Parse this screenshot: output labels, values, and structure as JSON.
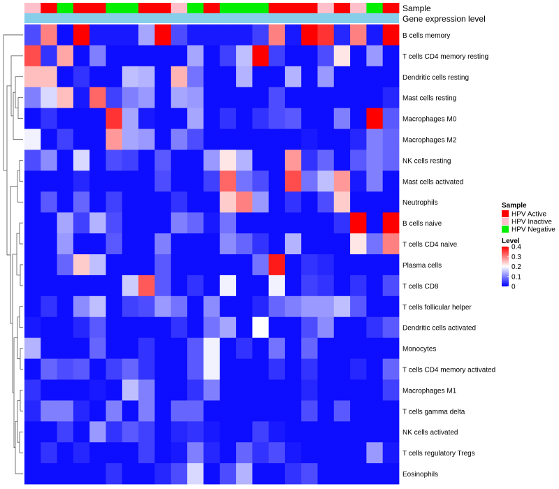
{
  "chart_data": {
    "type": "heatmap",
    "title": "",
    "annotation_tracks": [
      {
        "name": "Sample",
        "values": [
          "HPV Inactive",
          "HPV Active",
          "HPV Negative",
          "HPV Active",
          "HPV Active",
          "HPV Negative",
          "HPV Negative",
          "HPV Active",
          "HPV Active",
          "HPV Inactive",
          "HPV Negative",
          "HPV Active",
          "HPV Negative",
          "HPV Negative",
          "HPV Negative",
          "HPV Active",
          "HPV Active",
          "HPV Active",
          "HPV Inactive",
          "HPV Active",
          "HPV Inactive",
          "HPV Negative",
          "HPV Active"
        ]
      },
      {
        "name": "Gene expression level",
        "values": [
          "",
          "",
          "",
          "",
          "",
          "",
          "",
          "",
          "",
          "",
          "",
          "",
          "",
          "",
          "",
          "",
          "",
          "",
          "",
          "",
          "",
          "",
          ""
        ]
      }
    ],
    "legend_sample": {
      "title": "Sample",
      "entries": [
        {
          "label": "HPV Active",
          "color": "#ff0000"
        },
        {
          "label": "HPV Inactive",
          "color": "#ffc0cb"
        },
        {
          "label": "HPV Negative",
          "color": "#00ee00"
        }
      ]
    },
    "legend_level": {
      "title": "Level",
      "ticks": [
        "0",
        "0.1",
        "0.2",
        "0.3",
        "0.4"
      ],
      "tick_values": [
        0,
        0.1,
        0.2,
        0.3,
        0.4
      ],
      "range": [
        0,
        0.4
      ]
    },
    "colors": {
      "low": "#0000ff",
      "mid": "#ffffff",
      "high": "#ff0000",
      "expression_track": "#87ceeb"
    },
    "rows": [
      "B cells memory",
      "T cells CD4 memory resting",
      "Dendritic cells resting",
      "Mast cells resting",
      "Macrophages M0",
      "Macrophages M2",
      "NK cells resting",
      "Mast cells activated",
      "Neutrophils",
      "B cells naive",
      "T cells CD4 naive",
      "Plasma cells",
      "T cells CD8",
      "T cells follicular helper",
      "Dendritic cells activated",
      "Monocytes",
      "T cells CD4 memory activated",
      "Macrophages M1",
      "T cells gamma delta",
      "NK cells activated",
      "T cells regulatory  Tregs",
      "Eosinophils"
    ],
    "n_columns": 23,
    "values": [
      [
        0.06,
        0.3,
        0.01,
        0.4,
        0.02,
        0.02,
        0.02,
        0.13,
        0.4,
        0.06,
        0.02,
        0.02,
        0.02,
        0.02,
        0.05,
        0.3,
        0.02,
        0.4,
        0.36,
        0.03,
        0.3,
        0.02,
        0.4
      ],
      [
        0.34,
        0.04,
        0.27,
        0.01,
        0.1,
        0.01,
        0.01,
        0.01,
        0.01,
        0.01,
        0.13,
        0.01,
        0.05,
        0.15,
        0.4,
        0.05,
        0.01,
        0.01,
        0.06,
        0.22,
        0.01,
        0.12,
        0.01
      ],
      [
        0.25,
        0.25,
        0.01,
        0.04,
        0.01,
        0.01,
        0.15,
        0.14,
        0.01,
        0.26,
        0.09,
        0.01,
        0.01,
        0.14,
        0.01,
        0.01,
        0.14,
        0.01,
        0.12,
        0.01,
        0.01,
        0.01,
        0.01
      ],
      [
        0.1,
        0.17,
        0.25,
        0.02,
        0.32,
        0.05,
        0.1,
        0.12,
        0.01,
        0.13,
        0.12,
        0.01,
        0.01,
        0.01,
        0.01,
        0.06,
        0.01,
        0.01,
        0.01,
        0.01,
        0.01,
        0.01,
        0.03
      ],
      [
        0.01,
        0.04,
        0.01,
        0.01,
        0.01,
        0.36,
        0.13,
        0.02,
        0.01,
        0.01,
        0.13,
        0.01,
        0.04,
        0.01,
        0.04,
        0.06,
        0.07,
        0.01,
        0.01,
        0.1,
        0.01,
        0.4,
        0.07
      ],
      [
        0.19,
        0.01,
        0.05,
        0.01,
        0.01,
        0.28,
        0.13,
        0.12,
        0.01,
        0.1,
        0.06,
        0.01,
        0.01,
        0.01,
        0.01,
        0.01,
        0.01,
        0.02,
        0.01,
        0.01,
        0.03,
        0.1,
        0.08
      ],
      [
        0.06,
        0.11,
        0.01,
        0.17,
        0.01,
        0.06,
        0.05,
        0.01,
        0.07,
        0.01,
        0.01,
        0.12,
        0.22,
        0.14,
        0.01,
        0.01,
        0.28,
        0.04,
        0.08,
        0.01,
        0.07,
        0.1,
        0.08
      ],
      [
        0.01,
        0.01,
        0.01,
        0.03,
        0.01,
        0.01,
        0.01,
        0.01,
        0.06,
        0.01,
        0.01,
        0.05,
        0.32,
        0.09,
        0.06,
        0.01,
        0.34,
        0.09,
        0.15,
        0.28,
        0.02,
        0.1,
        0.01
      ],
      [
        0.01,
        0.07,
        0.01,
        0.08,
        0.01,
        0.05,
        0.01,
        0.01,
        0.01,
        0.04,
        0.01,
        0.01,
        0.24,
        0.3,
        0.12,
        0.01,
        0.04,
        0.01,
        0.06,
        0.24,
        0.01,
        0.01,
        0.01
      ],
      [
        0.01,
        0.01,
        0.13,
        0.05,
        0.14,
        0.06,
        0.01,
        0.01,
        0.01,
        0.1,
        0.08,
        0.02,
        0.09,
        0.01,
        0.01,
        0.01,
        0.01,
        0.01,
        0.01,
        0.04,
        0.4,
        0.01,
        0.4
      ],
      [
        0.01,
        0.01,
        0.12,
        0.01,
        0.01,
        0.07,
        0.01,
        0.01,
        0.1,
        0.01,
        0.01,
        0.01,
        0.11,
        0.08,
        0.04,
        0.01,
        0.14,
        0.01,
        0.01,
        0.01,
        0.22,
        0.09,
        0.3
      ],
      [
        0.01,
        0.01,
        0.08,
        0.24,
        0.15,
        0.01,
        0.01,
        0.01,
        0.07,
        0.01,
        0.01,
        0.01,
        0.01,
        0.01,
        0.09,
        0.38,
        0.01,
        0.04,
        0.03,
        0.01,
        0.01,
        0.01,
        0.01
      ],
      [
        0.01,
        0.01,
        0.01,
        0.01,
        0.01,
        0.01,
        0.16,
        0.33,
        0.07,
        0.01,
        0.04,
        0.01,
        0.19,
        0.01,
        0.01,
        0.19,
        0.01,
        0.05,
        0.04,
        0.01,
        0.04,
        0.01,
        0.06
      ],
      [
        0.01,
        0.04,
        0.01,
        0.11,
        0.15,
        0.01,
        0.05,
        0.06,
        0.12,
        0.09,
        0.01,
        0.11,
        0.01,
        0.01,
        0.03,
        0.08,
        0.1,
        0.12,
        0.12,
        0.15,
        0.07,
        0.01,
        0.01
      ],
      [
        0.02,
        0.01,
        0.01,
        0.03,
        0.07,
        0.01,
        0.01,
        0.01,
        0.01,
        0.04,
        0.01,
        0.09,
        0.13,
        0.01,
        0.2,
        0.01,
        0.01,
        0.06,
        0.11,
        0.01,
        0.01,
        0.04,
        0.07
      ],
      [
        0.14,
        0.01,
        0.01,
        0.01,
        0.08,
        0.01,
        0.01,
        0.04,
        0.01,
        0.01,
        0.07,
        0.19,
        0.01,
        0.04,
        0.01,
        0.09,
        0.01,
        0.08,
        0.01,
        0.01,
        0.01,
        0.01,
        0.01
      ],
      [
        0.01,
        0.08,
        0.06,
        0.07,
        0.01,
        0.05,
        0.08,
        0.04,
        0.01,
        0.01,
        0.07,
        0.19,
        0.01,
        0.01,
        0.01,
        0.04,
        0.01,
        0.04,
        0.01,
        0.01,
        0.03,
        0.01,
        0.08
      ],
      [
        0.04,
        0.01,
        0.01,
        0.01,
        0.02,
        0.01,
        0.15,
        0.1,
        0.01,
        0.01,
        0.04,
        0.1,
        0.01,
        0.01,
        0.01,
        0.01,
        0.01,
        0.03,
        0.01,
        0.01,
        0.01,
        0.01,
        0.05
      ],
      [
        0.03,
        0.1,
        0.1,
        0.03,
        0.01,
        0.1,
        0.01,
        0.1,
        0.01,
        0.08,
        0.08,
        0.01,
        0.01,
        0.01,
        0.01,
        0.01,
        0.01,
        0.06,
        0.01,
        0.07,
        0.01,
        0.01,
        0.01
      ],
      [
        0.01,
        0.01,
        0.05,
        0.01,
        0.12,
        0.04,
        0.07,
        0.05,
        0.01,
        0.03,
        0.04,
        0.02,
        0.01,
        0.01,
        0.05,
        0.02,
        0.01,
        0.01,
        0.01,
        0.01,
        0.01,
        0.01,
        0.01
      ],
      [
        0.01,
        0.04,
        0.01,
        0.03,
        0.01,
        0.01,
        0.01,
        0.05,
        0.01,
        0.02,
        0.1,
        0.03,
        0.01,
        0.08,
        0.04,
        0.06,
        0.02,
        0.01,
        0.01,
        0.01,
        0.01,
        0.12,
        0.02
      ],
      [
        0.01,
        0.01,
        0.01,
        0.01,
        0.01,
        0.04,
        0.01,
        0.01,
        0.03,
        0.06,
        0.17,
        0.01,
        0.06,
        0.14,
        0.01,
        0.01,
        0.04,
        0.06,
        0.01,
        0.01,
        0.01,
        0.01,
        0.01
      ]
    ],
    "dendrogram": "hierarchical clustering of rows (left side)"
  }
}
